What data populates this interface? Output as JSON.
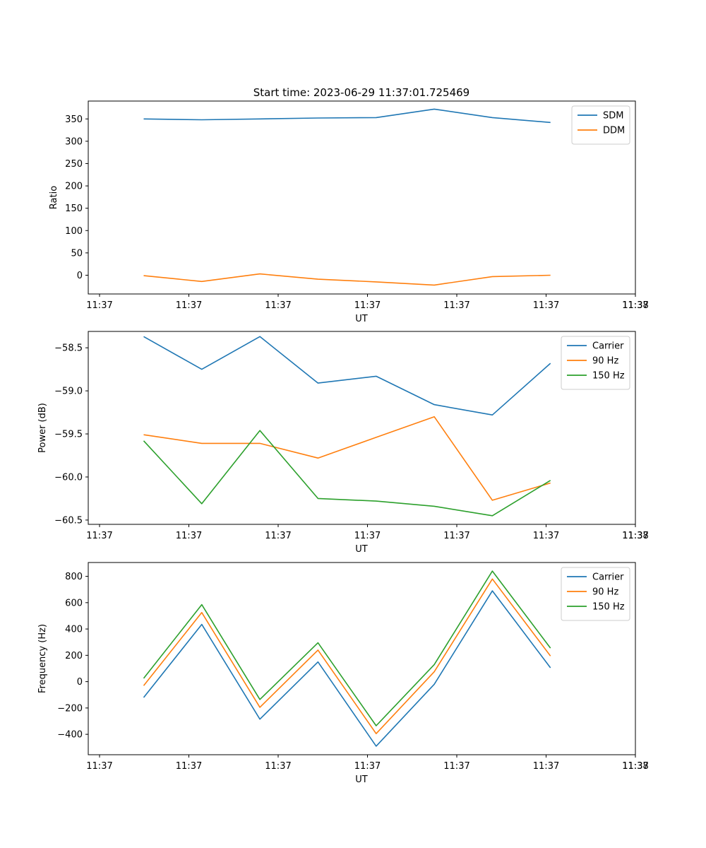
{
  "title": "Start time: 2023-06-29 11:37:01.725469",
  "chart_data": [
    {
      "type": "line",
      "title": "Start time: 2023-06-29 11:37:01.725469",
      "xlabel": "UT",
      "ylabel": "Ratio",
      "xtick_labels": [
        "11:37",
        "11:37",
        "11:37",
        "11:37",
        "11:37",
        "11:37",
        "11:37"
      ],
      "xlim_tick_units": [
        -0.06,
        3.0
      ],
      "ytick_labels": [
        "0",
        "50",
        "100",
        "150",
        "200",
        "250",
        "300",
        "350"
      ],
      "ylim": [
        -42,
        390
      ],
      "legend": "top-right",
      "x": [
        0.25,
        0.575,
        0.9,
        1.225,
        1.55,
        1.875,
        2.2,
        2.525
      ],
      "series": [
        {
          "name": "SDM",
          "color": "#1f77b4",
          "values": [
            350,
            348,
            350,
            352,
            353,
            372,
            353,
            342
          ]
        },
        {
          "name": "DDM",
          "color": "#ff7f0e",
          "values": [
            -1,
            -14,
            3,
            -9,
            -15,
            -22,
            -3,
            0
          ]
        }
      ]
    },
    {
      "type": "line",
      "title": "",
      "xlabel": "UT",
      "ylabel": "Power (dB)",
      "xtick_labels": [
        "11:37",
        "11:37",
        "11:37",
        "11:37",
        "11:37",
        "11:37",
        "11:37"
      ],
      "xlim_tick_units": [
        -0.06,
        3.0
      ],
      "ytick_labels": [
        "−60.5",
        "−60.0",
        "−59.5",
        "−59.0",
        "−58.5"
      ],
      "ytick_values": [
        -60.5,
        -60.0,
        -59.5,
        -59.0,
        -58.5
      ],
      "ylim": [
        -60.55,
        -58.31
      ],
      "legend": "top-right",
      "x": [
        0.25,
        0.575,
        0.9,
        1.225,
        1.55,
        1.875,
        2.2,
        2.525
      ],
      "series": [
        {
          "name": "Carrier",
          "color": "#1f77b4",
          "values": [
            -58.37,
            -58.75,
            -58.37,
            -58.91,
            -58.83,
            -59.16,
            -59.28,
            -58.68
          ]
        },
        {
          "name": "90 Hz",
          "color": "#ff7f0e",
          "values": [
            -59.51,
            -59.61,
            -59.61,
            -59.78,
            -59.54,
            -59.3,
            -60.27,
            -60.07
          ]
        },
        {
          "name": "150 Hz",
          "color": "#2ca02c",
          "values": [
            -59.58,
            -60.31,
            -59.46,
            -60.25,
            -60.28,
            -60.34,
            -60.45,
            -60.04
          ]
        }
      ]
    },
    {
      "type": "line",
      "title": "",
      "xlabel": "UT",
      "ylabel": "Frequency (Hz)",
      "xtick_labels": [
        "11:37",
        "11:37",
        "11:37",
        "11:37",
        "11:37",
        "11:37",
        "11:37"
      ],
      "xlim_tick_units": [
        -0.06,
        3.0
      ],
      "ytick_labels": [
        "−400",
        "−200",
        "0",
        "200",
        "400",
        "600",
        "800"
      ],
      "ytick_values": [
        -400,
        -200,
        0,
        200,
        400,
        600,
        800
      ],
      "ylim": [
        -555,
        905
      ],
      "legend": "top-right",
      "x": [
        0.25,
        0.575,
        0.9,
        1.225,
        1.55,
        1.875,
        2.2,
        2.525
      ],
      "series": [
        {
          "name": "Carrier",
          "color": "#1f77b4",
          "values": [
            -120,
            435,
            -285,
            150,
            -490,
            -20,
            690,
            105
          ]
        },
        {
          "name": "90 Hz",
          "color": "#ff7f0e",
          "values": [
            -30,
            525,
            -195,
            240,
            -395,
            75,
            780,
            195
          ]
        },
        {
          "name": "150 Hz",
          "color": "#2ca02c",
          "values": [
            25,
            585,
            -135,
            295,
            -335,
            130,
            840,
            255
          ]
        }
      ]
    }
  ],
  "x_last_tick_label": "11:38"
}
